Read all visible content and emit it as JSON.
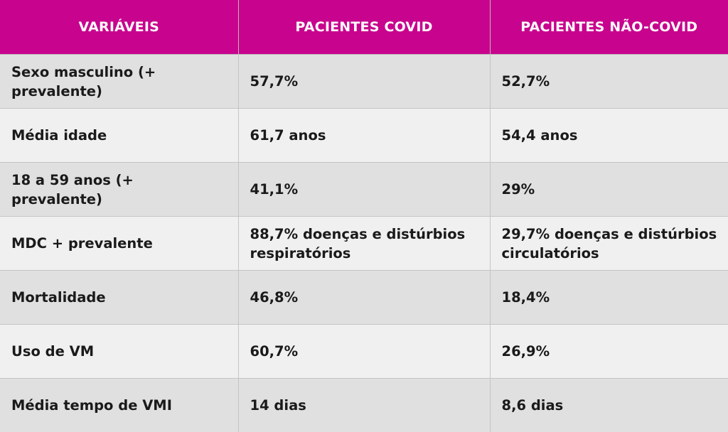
{
  "table": {
    "headers": [
      "VARIÁVEIS",
      "PACIENTES COVID",
      "PACIENTES NÃO-COVID"
    ],
    "rows": [
      [
        "Sexo masculino (+ prevalente)",
        "57,7%",
        "52,7%"
      ],
      [
        "Média idade",
        "61,7 anos",
        "54,4 anos"
      ],
      [
        "18 a 59 anos (+ prevalente)",
        "41,1%",
        "29%"
      ],
      [
        "MDC + prevalente",
        "88,7% doenças e distúrbios respiratórios",
        "29,7% doenças e distúrbios circulatórios"
      ],
      [
        "Mortalidade",
        "46,8%",
        "18,4%"
      ],
      [
        "Uso de VM",
        "60,7%",
        "26,9%"
      ],
      [
        "Média tempo de VMI",
        "14 dias",
        "8,6 dias"
      ]
    ]
  },
  "colors": {
    "header_bg": "#c8048e",
    "header_text": "#ffffff",
    "row_odd": "#e0e0e0",
    "row_even": "#f0f0f0"
  }
}
